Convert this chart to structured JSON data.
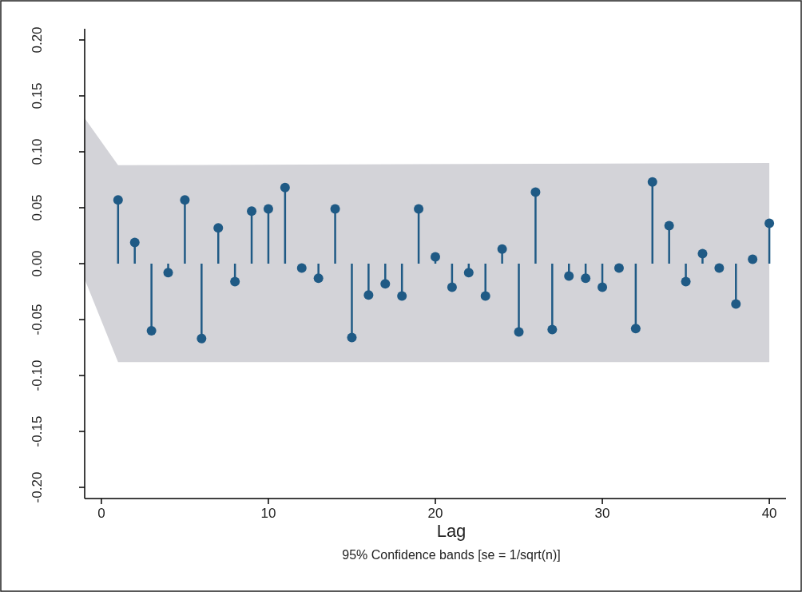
{
  "chart_data": {
    "type": "lollipop",
    "xlabel": "Lag",
    "annotations": [
      "95% Confidence bands [se = 1/sqrt(n)]"
    ],
    "xlim": [
      -1,
      41
    ],
    "ylim": [
      -0.21,
      0.21
    ],
    "xticks": [
      0,
      10,
      20,
      30,
      40
    ],
    "yticks": [
      {
        "value": -0.2,
        "label": "-0.20"
      },
      {
        "value": -0.15,
        "label": "-0.15"
      },
      {
        "value": -0.1,
        "label": "-0.10"
      },
      {
        "value": -0.05,
        "label": "-0.05"
      },
      {
        "value": 0,
        "label": "0.00"
      },
      {
        "value": 0.05,
        "label": "0.05"
      },
      {
        "value": 0.1,
        "label": "0.10"
      },
      {
        "value": 0.15,
        "label": "0.15"
      },
      {
        "value": 0.2,
        "label": "0.20"
      }
    ],
    "grid": false,
    "series": [
      {
        "type": "area",
        "color": "#d3d3d8",
        "x": [
          -1,
          1,
          40
        ],
        "values": [
          0.13,
          0.088,
          0.09
        ],
        "marker": "none"
      },
      {
        "type": "area",
        "color": "#d3d3d8",
        "x": [
          -1,
          1,
          40
        ],
        "values": [
          -0.014,
          -0.088,
          -0.088
        ],
        "marker": "none"
      },
      {
        "marker": "circle",
        "color": "#1f5a85",
        "x": [
          1,
          2,
          3,
          4,
          5,
          6,
          7,
          8,
          9,
          10,
          11,
          12,
          13,
          14,
          15,
          16,
          17,
          18,
          19,
          20,
          21,
          22,
          23,
          24,
          25,
          26,
          27,
          28,
          29,
          30,
          31,
          32,
          33,
          34,
          35,
          36,
          37,
          38,
          39,
          40
        ],
        "values": [
          0.057,
          0.019,
          -0.06,
          -0.008,
          0.057,
          -0.067,
          0.032,
          -0.016,
          0.047,
          0.049,
          0.068,
          -0.004,
          -0.013,
          0.049,
          -0.066,
          -0.028,
          -0.018,
          -0.029,
          0.049,
          0.006,
          -0.021,
          -0.008,
          -0.029,
          0.013,
          -0.061,
          0.064,
          -0.059,
          -0.011,
          -0.013,
          -0.021,
          -0.004,
          -0.058,
          0.073,
          0.034,
          -0.016,
          0.009,
          -0.004,
          -0.036,
          0.004,
          0.036
        ]
      }
    ]
  }
}
